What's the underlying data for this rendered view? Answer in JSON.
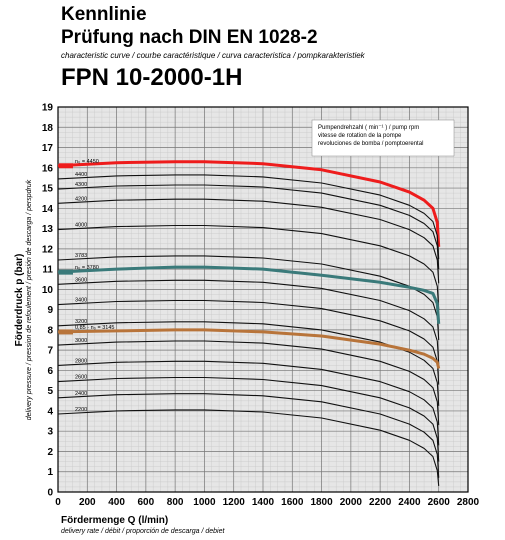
{
  "header": {
    "title_line1": "Kennlinie",
    "title_line2": "Prüfung nach DIN EN 1028-2",
    "subtitle": "characteristic curve  /  courbe caractéristique  /  curva caracteristica  /  pompkarakteristiek",
    "model": "FPN 10-2000-1H"
  },
  "legend_note": "Pumpendrehzahl ( min⁻¹ )  /  pump rpm\nvitesse de rotation de la pompe\nrevoluciones de bomba  /  pomptoerental",
  "y_axis": {
    "label": "Förderdruck  p (bar)",
    "sublabel": "delivery pressure  /  pression de refoulement  /  presión de descarga  /  perspdruk"
  },
  "x_axis": {
    "label": "Fördermenge Q (l/min)",
    "sublabel": "delivery rate  /  débit  /  proporción de descarga  /  debiet"
  },
  "chart_data": {
    "type": "line",
    "title": "",
    "xlabel": "Fördermenge Q (l/min)",
    "ylabel": "Förderdruck  p (bar)",
    "xlim": [
      0,
      2800
    ],
    "ylim": [
      0,
      19
    ],
    "x_ticks": [
      0,
      200,
      400,
      600,
      800,
      1000,
      1200,
      1400,
      1600,
      1800,
      2000,
      2200,
      2400,
      2600,
      2800
    ],
    "y_ticks": [
      0,
      1,
      2,
      3,
      4,
      5,
      6,
      7,
      8,
      9,
      10,
      11,
      12,
      13,
      14,
      15,
      16,
      17,
      18,
      19
    ],
    "grid": true,
    "series": [
      {
        "name": "n₀ = 4450",
        "color": "#ee1c1c",
        "bold": true,
        "x": [
          0,
          400,
          800,
          1000,
          1400,
          1800,
          2200,
          2400,
          2500,
          2560,
          2590,
          2600
        ],
        "y": [
          16.1,
          16.25,
          16.3,
          16.3,
          16.2,
          15.9,
          15.3,
          14.8,
          14.4,
          14.0,
          13.3,
          12.1
        ]
      },
      {
        "name": "4400",
        "x": [
          0,
          400,
          800,
          1000,
          1400,
          1800,
          2200,
          2400,
          2500,
          2560,
          2590,
          2600
        ],
        "y": [
          15.45,
          15.6,
          15.65,
          15.65,
          15.55,
          15.25,
          14.65,
          14.15,
          13.75,
          13.35,
          12.65,
          11.5
        ]
      },
      {
        "name": "4300",
        "x": [
          0,
          400,
          800,
          1000,
          1400,
          1800,
          2200,
          2400,
          2500,
          2560,
          2590,
          2600
        ],
        "y": [
          14.95,
          15.1,
          15.15,
          15.15,
          15.05,
          14.75,
          14.15,
          13.65,
          13.25,
          12.85,
          12.15,
          11.0
        ]
      },
      {
        "name": "4200",
        "x": [
          0,
          400,
          800,
          1000,
          1400,
          1800,
          2200,
          2400,
          2500,
          2560,
          2590,
          2600
        ],
        "y": [
          14.25,
          14.4,
          14.45,
          14.45,
          14.35,
          14.05,
          13.45,
          12.95,
          12.55,
          12.15,
          11.45,
          10.3
        ]
      },
      {
        "name": "4000",
        "x": [
          0,
          400,
          800,
          1000,
          1400,
          1800,
          2200,
          2400,
          2500,
          2560,
          2590,
          2600
        ],
        "y": [
          12.95,
          13.1,
          13.15,
          13.15,
          13.05,
          12.75,
          12.15,
          11.65,
          11.25,
          10.85,
          10.15,
          9.0
        ]
      },
      {
        "name": "3783",
        "x": [
          0,
          400,
          800,
          1000,
          1400,
          1800,
          2200,
          2400,
          2500,
          2560,
          2590,
          2600
        ],
        "y": [
          11.45,
          11.6,
          11.65,
          11.65,
          11.55,
          11.25,
          10.65,
          10.15,
          9.75,
          9.35,
          8.65,
          7.5
        ]
      },
      {
        "name": "n₀ = 3780",
        "color": "#3a7a7a",
        "bold": true,
        "x": [
          0,
          400,
          800,
          1000,
          1400,
          1800,
          2200,
          2400,
          2500,
          2560,
          2590,
          2600
        ],
        "y": [
          10.85,
          11.0,
          11.1,
          11.1,
          11.0,
          10.7,
          10.35,
          10.1,
          9.95,
          9.8,
          9.3,
          8.3
        ]
      },
      {
        "name": "3600",
        "x": [
          0,
          400,
          800,
          1000,
          1400,
          1800,
          2200,
          2400,
          2500,
          2560,
          2590,
          2600
        ],
        "y": [
          10.25,
          10.4,
          10.45,
          10.45,
          10.35,
          10.05,
          9.45,
          8.95,
          8.55,
          8.15,
          7.45,
          6.3
        ]
      },
      {
        "name": "3400",
        "x": [
          0,
          400,
          800,
          1000,
          1400,
          1800,
          2200,
          2400,
          2500,
          2560,
          2590,
          2600
        ],
        "y": [
          9.25,
          9.4,
          9.45,
          9.45,
          9.35,
          9.05,
          8.45,
          7.95,
          7.55,
          7.15,
          6.45,
          5.3
        ]
      },
      {
        "name": "3200",
        "x": [
          0,
          400,
          800,
          1000,
          1400,
          1800,
          2200,
          2400,
          2500,
          2560,
          2590,
          2600
        ],
        "y": [
          8.2,
          8.35,
          8.4,
          8.4,
          8.3,
          8.0,
          7.4,
          6.9,
          6.5,
          6.1,
          5.4,
          4.25
        ]
      },
      {
        "name": "0,85 · n₀ = 3145",
        "color": "#b8743a",
        "bold": true,
        "x": [
          0,
          400,
          800,
          1000,
          1400,
          1800,
          2200,
          2400,
          2500,
          2560,
          2590,
          2600
        ],
        "y": [
          7.9,
          7.95,
          8.0,
          8.0,
          7.9,
          7.7,
          7.3,
          7.0,
          6.8,
          6.6,
          6.4,
          6.1
        ]
      },
      {
        "name": "3000",
        "x": [
          0,
          400,
          800,
          1000,
          1400,
          1800,
          2200,
          2400,
          2500,
          2560,
          2590,
          2600
        ],
        "y": [
          7.25,
          7.4,
          7.45,
          7.45,
          7.35,
          7.05,
          6.45,
          5.95,
          5.55,
          5.15,
          4.45,
          3.3
        ]
      },
      {
        "name": "2800",
        "x": [
          0,
          400,
          800,
          1000,
          1400,
          1800,
          2200,
          2400,
          2500,
          2560,
          2590,
          2600
        ],
        "y": [
          6.25,
          6.4,
          6.45,
          6.45,
          6.35,
          6.05,
          5.45,
          4.95,
          4.55,
          4.15,
          3.45,
          2.3
        ]
      },
      {
        "name": "2600",
        "x": [
          0,
          400,
          800,
          1000,
          1400,
          1800,
          2200,
          2400,
          2500,
          2560,
          2590,
          2600
        ],
        "y": [
          5.45,
          5.6,
          5.65,
          5.65,
          5.55,
          5.25,
          4.65,
          4.15,
          3.75,
          3.35,
          2.65,
          1.5
        ]
      },
      {
        "name": "2400",
        "x": [
          0,
          400,
          800,
          1000,
          1400,
          1800,
          2200,
          2400,
          2500,
          2560,
          2590,
          2600
        ],
        "y": [
          4.65,
          4.8,
          4.85,
          4.85,
          4.75,
          4.45,
          3.85,
          3.35,
          2.95,
          2.55,
          1.85,
          0.7
        ]
      },
      {
        "name": "2200",
        "x": [
          0,
          400,
          800,
          1000,
          1400,
          1800,
          2200,
          2400,
          2500,
          2560,
          2590,
          2600
        ],
        "y": [
          3.85,
          4.0,
          4.05,
          4.05,
          3.95,
          3.65,
          3.05,
          2.55,
          2.15,
          1.75,
          1.05,
          0.3
        ]
      }
    ]
  }
}
